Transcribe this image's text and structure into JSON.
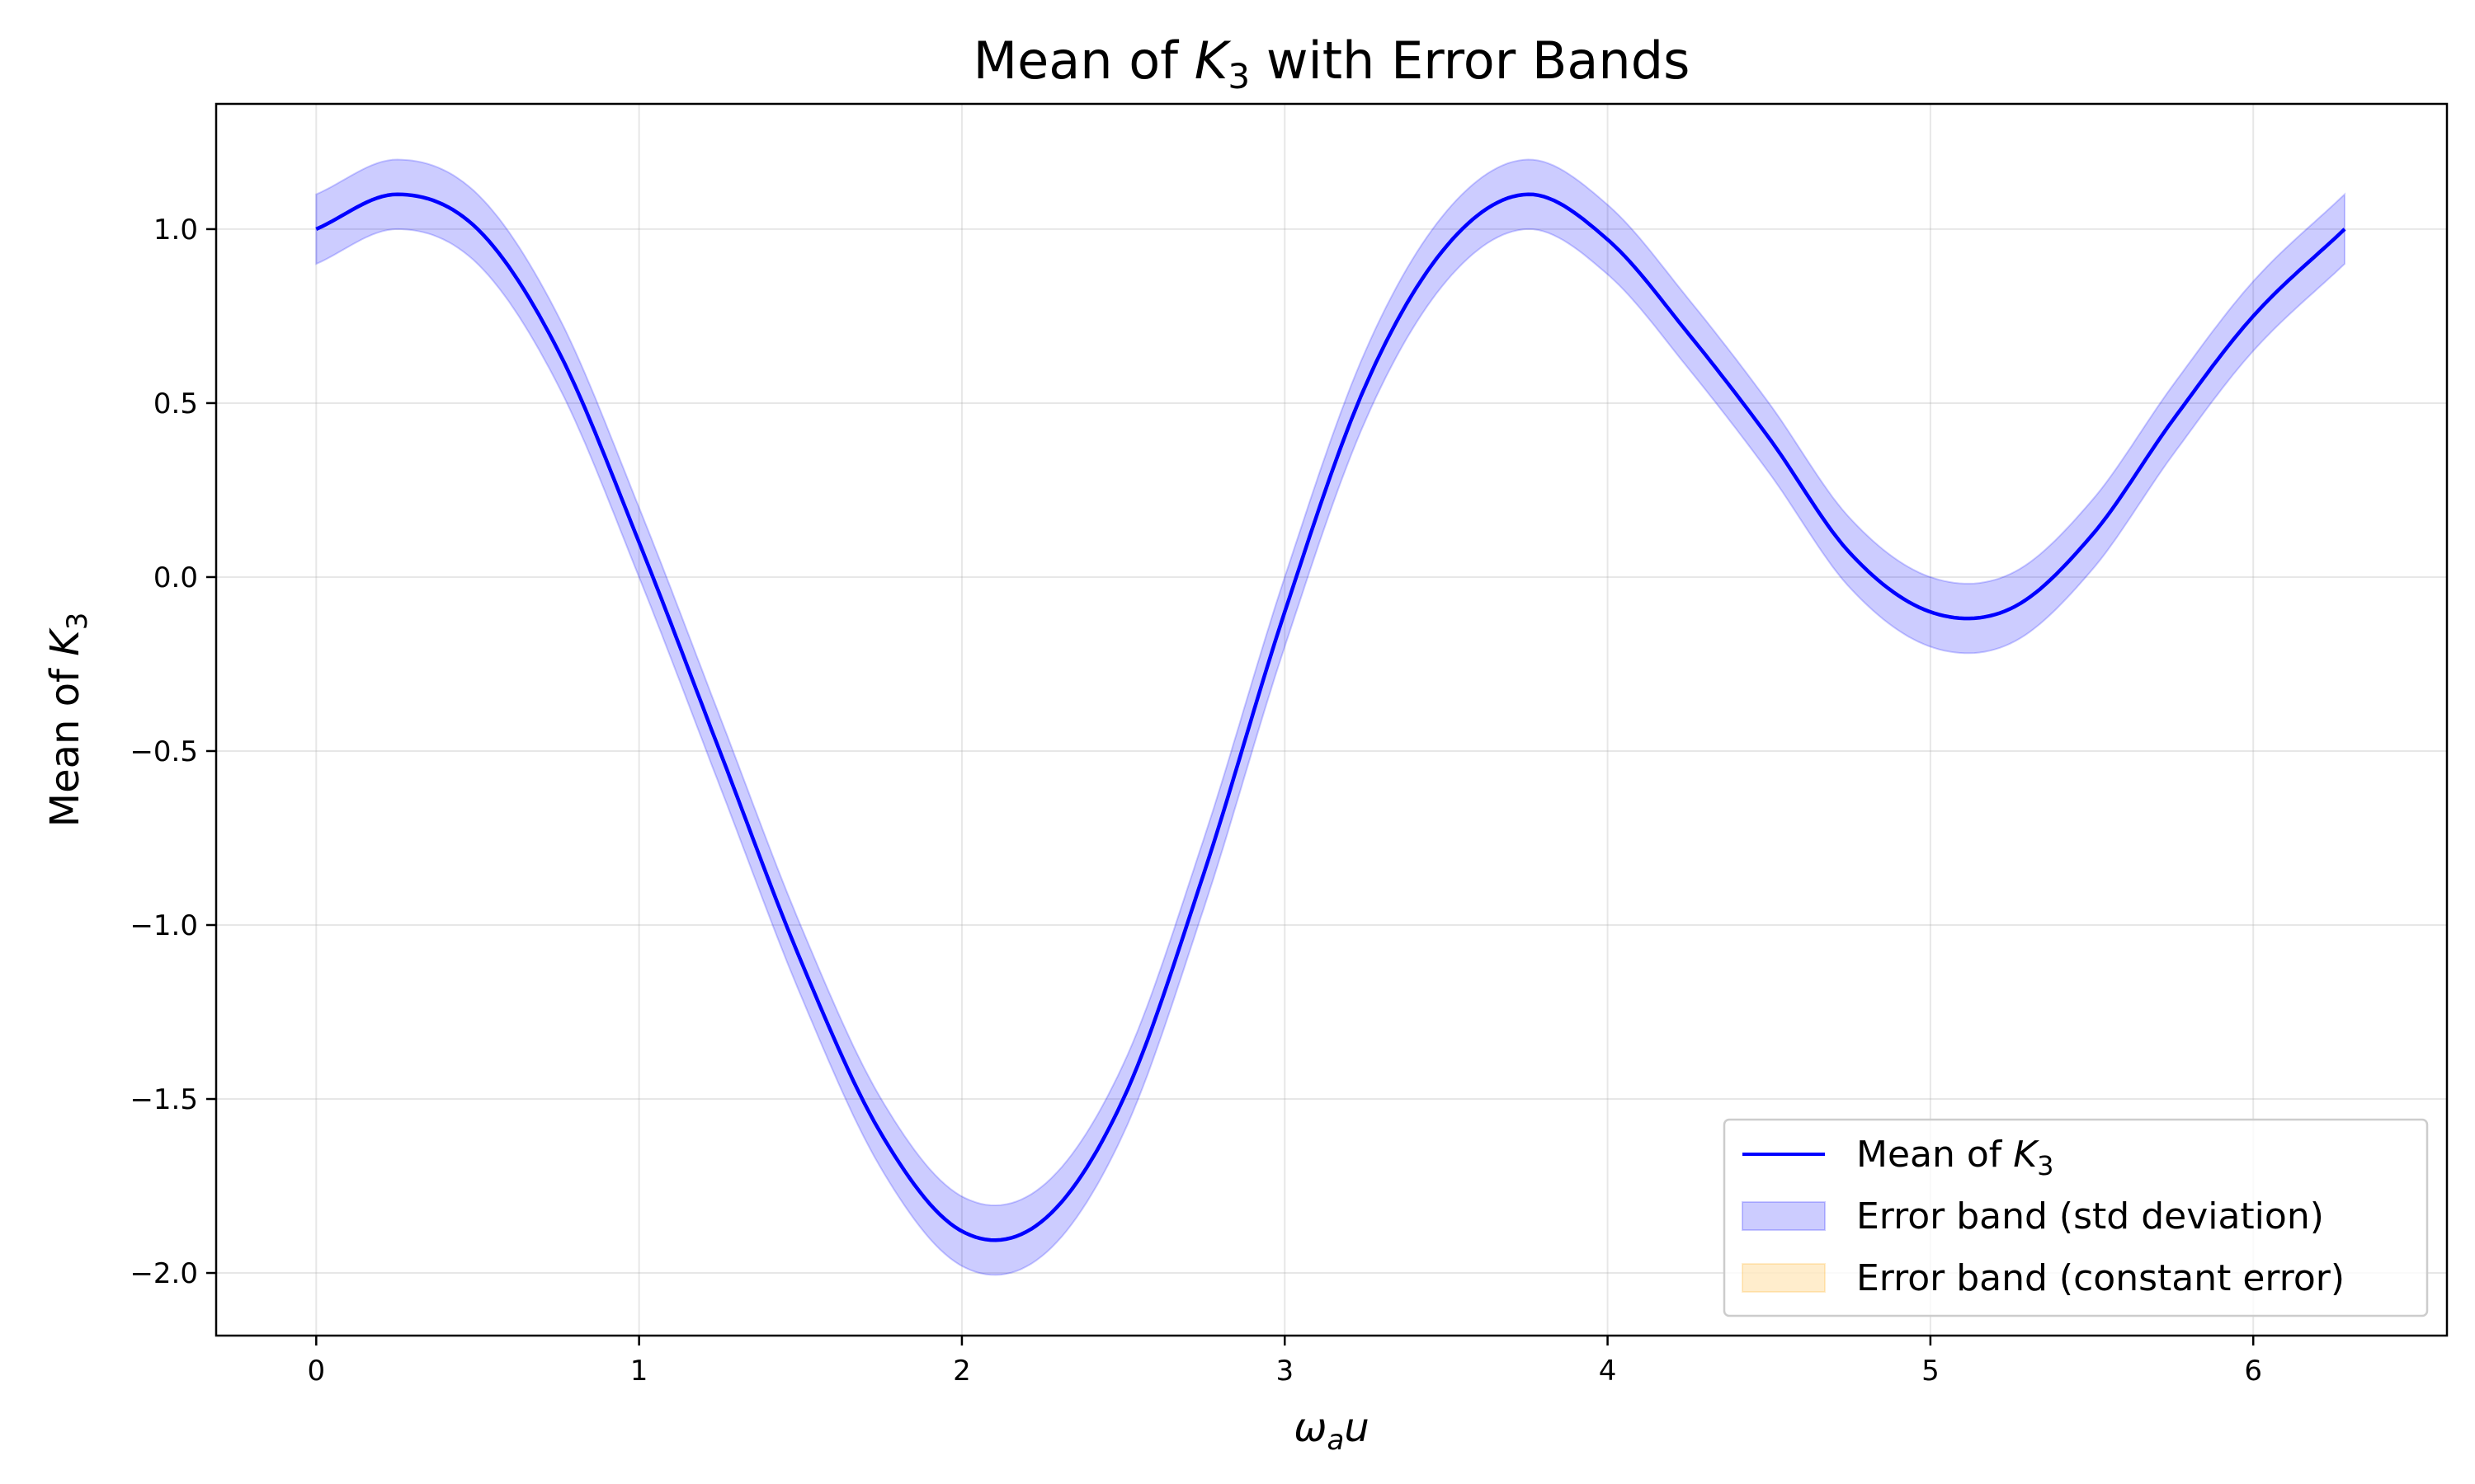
{
  "chart_data": {
    "type": "line",
    "title": {
      "prefix": "Mean of ",
      "var": "K",
      "sub": "3",
      "suffix": " with Error Bands"
    },
    "xlabel": {
      "var": "ω",
      "sub": "a",
      "var2": "u"
    },
    "ylabel": {
      "prefix": "Mean of ",
      "var": "K",
      "sub": "3"
    },
    "xlim": [
      -0.31,
      6.6
    ],
    "ylim": [
      -2.18,
      1.36
    ],
    "xticks": [
      0,
      1,
      2,
      3,
      4,
      5,
      6
    ],
    "yticks": [
      1.0,
      0.5,
      0.0,
      -0.5,
      -1.0,
      -1.5,
      -2.0
    ],
    "x_tick_labels": [
      "0",
      "1",
      "2",
      "3",
      "4",
      "5",
      "6"
    ],
    "y_tick_labels": [
      "1.0",
      "0.5",
      "0.0",
      "−0.5",
      "−1.0",
      "−1.5",
      "−2.0"
    ],
    "grid": true,
    "legend_position": "lower-right",
    "legend": [
      {
        "prefix": "Mean of ",
        "var": "K",
        "sub": "3"
      },
      {
        "text": "Error band (std deviation)"
      },
      {
        "text": "Error band (constant error)"
      }
    ],
    "x": [
      0,
      0.25,
      0.5,
      0.75,
      1.0,
      1.25,
      1.5,
      1.75,
      2.0,
      2.25,
      2.5,
      2.75,
      3.0,
      3.25,
      3.5,
      3.75,
      4.0,
      4.25,
      4.5,
      4.75,
      5.0,
      5.25,
      5.5,
      5.75,
      6.0,
      6.283
    ],
    "series": [
      {
        "name": "Mean of K3",
        "type": "line",
        "color": "#0000ff",
        "values": [
          1.0,
          1.1,
          1.0,
          0.65,
          0.1,
          -0.5,
          -1.1,
          -1.6,
          -1.88,
          -1.85,
          -1.5,
          -0.85,
          -0.1,
          0.55,
          0.95,
          1.1,
          0.97,
          0.7,
          0.4,
          0.07,
          -0.1,
          -0.09,
          0.12,
          0.45,
          0.75,
          1.0
        ]
      },
      {
        "name": "Error band (std deviation)",
        "type": "band",
        "color": "#0000ff",
        "opacity": 0.2,
        "halfwidth": 0.1
      },
      {
        "name": "Error band (constant error)",
        "type": "band",
        "color": "#ffa500",
        "opacity": 0.2,
        "halfwidth": 0
      }
    ]
  }
}
